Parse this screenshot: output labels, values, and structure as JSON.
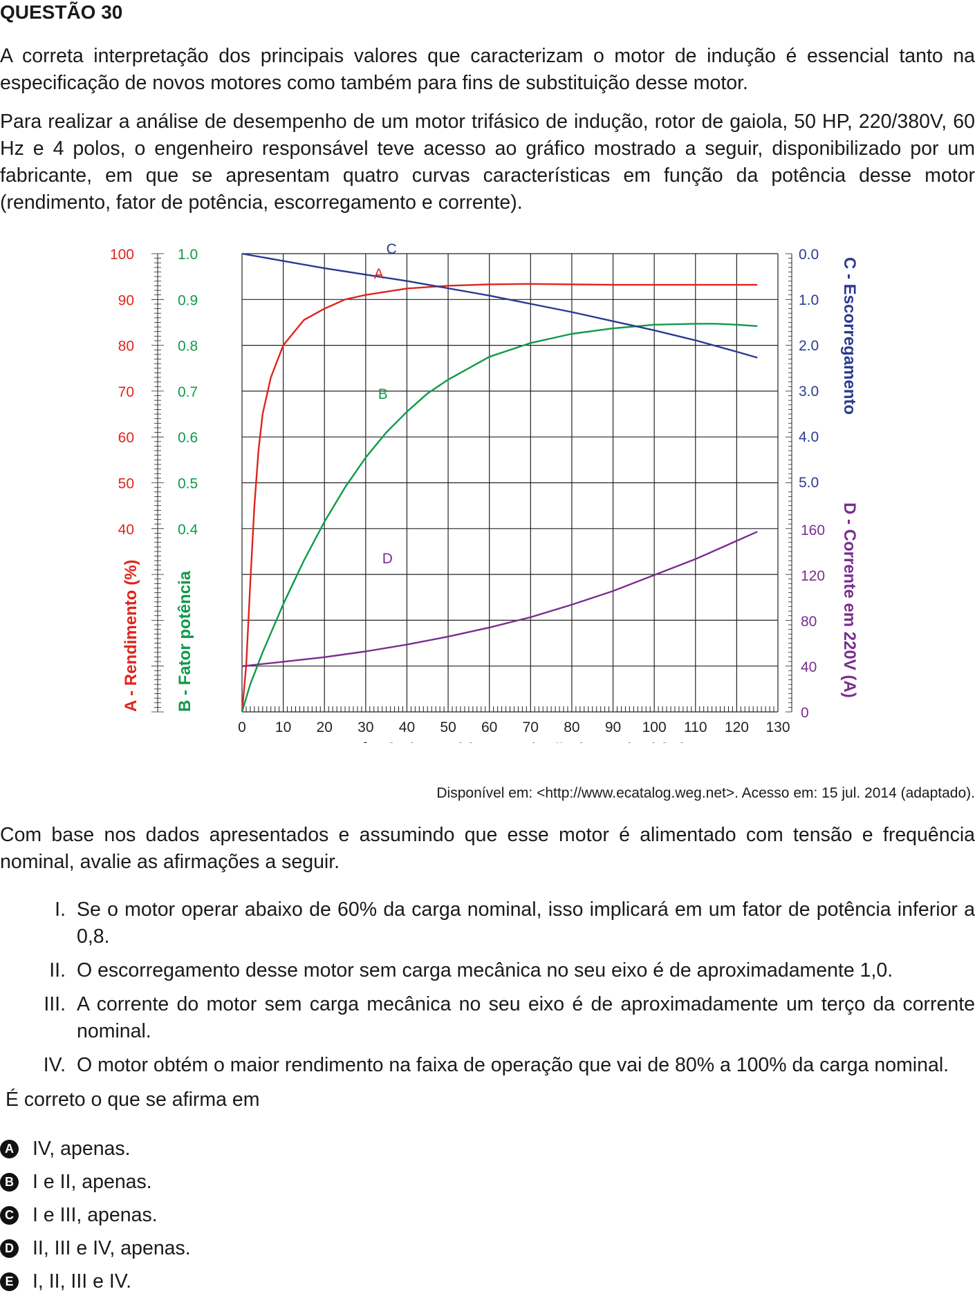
{
  "question": {
    "title": "QUESTÃO 30",
    "intro": "A correta interpretação dos principais valores que caracterizam o motor de indução é essencial tanto na especificação de novos motores como também para fins de substituição desse motor.",
    "context": "Para realizar a análise de desempenho de um motor trifásico de indução, rotor de gaiola, 50 HP, 220/380V, 60 Hz e 4 polos, o engenheiro responsável teve acesso ao gráfico mostrado a seguir, disponibilizado por um fabricante, em que se apresentam quatro curvas características em função da potência desse motor (rendimento, fator de potência, escorregamento e corrente).",
    "source": "Disponível em: <http://www.ecatalog.weg.net>. Acesso em: 15 jul. 2014 (adaptado).",
    "lead": "Com base nos dados apresentados e assumindo que esse motor é alimentado com tensão e frequência nominal, avalie as afirmações a seguir.",
    "statements": [
      {
        "num": "I.",
        "text": "Se o motor operar abaixo de 60% da carga nominal, isso implicará em um fator de potência inferior a 0,8."
      },
      {
        "num": "II.",
        "text": "O escorregamento desse motor sem carga mecânica no seu eixo é de aproximadamente 1,0."
      },
      {
        "num": "III.",
        "text": "A corrente do motor sem carga mecânica no seu eixo é de aproximadamente um terço da corrente nominal."
      },
      {
        "num": "IV.",
        "text": "O motor obtém o maior rendimento na faixa de operação que vai de 80% a 100% da carga nominal."
      }
    ],
    "prompt": "É correto o que se afirma em",
    "options": [
      {
        "letter": "A",
        "text": "IV, apenas."
      },
      {
        "letter": "B",
        "text": "I e II, apenas."
      },
      {
        "letter": "C",
        "text": "I e III, apenas."
      },
      {
        "letter": "D",
        "text": "II, III e IV, apenas."
      },
      {
        "letter": "E",
        "text": "I, II, III e IV."
      }
    ]
  },
  "chart_data": {
    "type": "line",
    "xlabel": "Potência fornecida em relação à nominal (%)",
    "xlim": [
      0,
      130
    ],
    "xticks": [
      "0",
      "10",
      "20",
      "30",
      "40",
      "50",
      "60",
      "70",
      "80",
      "90",
      "100",
      "110",
      "120",
      "130"
    ],
    "axes": {
      "rendimento": {
        "label": "A - Rendimento (%)",
        "color": "#e0241b",
        "ticks": [
          "100",
          "90",
          "80",
          "70",
          "60",
          "50",
          "40"
        ]
      },
      "fator": {
        "label": "B - Fator potência",
        "color": "#0f9a49",
        "ticks": [
          "1.0",
          "0.9",
          "0.8",
          "0.7",
          "0.6",
          "0.5",
          "0.4"
        ]
      },
      "escorregamento": {
        "label": "C - Escorregamento",
        "color": "#2b3a8f",
        "ticks": [
          "0.0",
          "1.0",
          "2.0",
          "3.0",
          "4.0",
          "5.0"
        ]
      },
      "corrente": {
        "label": "D - Corrente em 220V (A)",
        "color": "#7a2d8f",
        "ticks": [
          "160",
          "120",
          "80",
          "40",
          "0"
        ]
      }
    },
    "series": [
      {
        "name": "A",
        "axis": "rendimento",
        "color": "#e0241b",
        "x": [
          0,
          1,
          2,
          3,
          4,
          5,
          7,
          10,
          15,
          20,
          25,
          30,
          40,
          50,
          60,
          70,
          80,
          90,
          100,
          110,
          120,
          125
        ],
        "y": [
          0,
          10,
          28,
          45,
          57,
          65,
          73,
          80,
          85.5,
          88,
          90,
          91,
          92.4,
          93,
          93.3,
          93.4,
          93.3,
          93.2,
          93.2,
          93.2,
          93.2,
          93.2
        ]
      },
      {
        "name": "B",
        "axis": "fator",
        "color": "#0f9a49",
        "x": [
          0,
          2,
          5,
          10,
          15,
          20,
          25,
          30,
          35,
          40,
          45,
          50,
          60,
          70,
          80,
          90,
          100,
          110,
          115,
          120,
          125
        ],
        "y": [
          0.0,
          0.06,
          0.13,
          0.235,
          0.33,
          0.415,
          0.49,
          0.555,
          0.61,
          0.655,
          0.695,
          0.725,
          0.775,
          0.805,
          0.825,
          0.837,
          0.845,
          0.847,
          0.847,
          0.845,
          0.842
        ]
      },
      {
        "name": "C",
        "axis": "escorregamento",
        "color": "#2b3a8f",
        "x": [
          0,
          20,
          40,
          60,
          80,
          100,
          110,
          120,
          125
        ],
        "y": [
          0.0,
          0.32,
          0.6,
          0.92,
          1.28,
          1.68,
          1.9,
          2.15,
          2.28
        ]
      },
      {
        "name": "D",
        "axis": "corrente",
        "color": "#7a2d8f",
        "x": [
          0,
          10,
          20,
          30,
          40,
          50,
          60,
          70,
          80,
          90,
          100,
          110,
          120,
          125
        ],
        "y": [
          40,
          44,
          48,
          53,
          59,
          66,
          74,
          83,
          94,
          106,
          120,
          134,
          150,
          158
        ]
      }
    ],
    "curve_labels": [
      {
        "name": "C",
        "color": "#2b3a8f"
      },
      {
        "name": "A",
        "color": "#e0241b"
      },
      {
        "name": "B",
        "color": "#0f9a49"
      },
      {
        "name": "D",
        "color": "#7a2d8f"
      }
    ],
    "grid": true
  }
}
